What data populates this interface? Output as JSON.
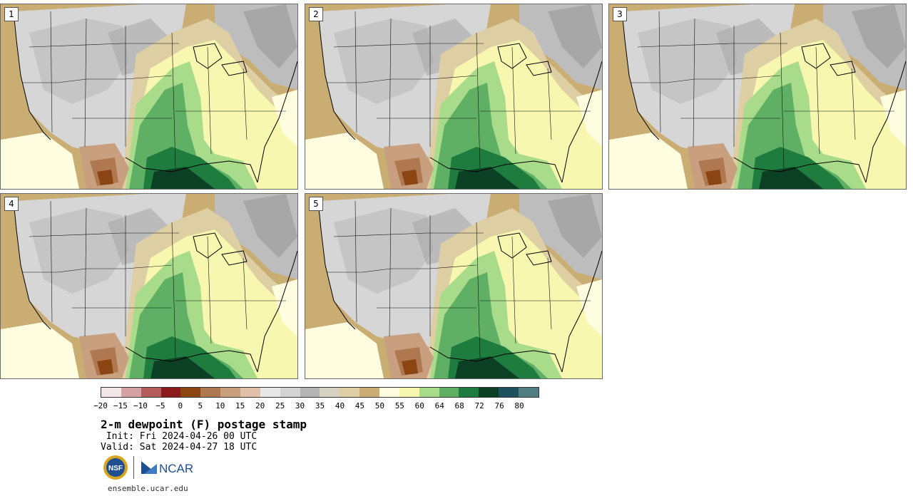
{
  "panels": [
    {
      "label": "1"
    },
    {
      "label": "2"
    },
    {
      "label": "3"
    },
    {
      "label": "4"
    },
    {
      "label": "5"
    }
  ],
  "colorbar": {
    "colors": [
      "#f3e6e6",
      "#d4a2a2",
      "#b45c5c",
      "#8b1a1a",
      "#8b4513",
      "#b07850",
      "#c8a080",
      "#e0c0a8",
      "#e8e8e8",
      "#d4d4d4",
      "#b4b4b4",
      "#d6d2c2",
      "#decea4",
      "#c9ad73",
      "#fffde0",
      "#f7f7b0",
      "#a9dc8a",
      "#5fb064",
      "#1e7d3e",
      "#0b4024",
      "#1f5060",
      "#507e82"
    ],
    "tick_labels": [
      "−20",
      "−15",
      "−10",
      "−5",
      "0",
      "5",
      "10",
      "15",
      "20",
      "25",
      "30",
      "35",
      "40",
      "45",
      "50",
      "55",
      "60",
      "64",
      "68",
      "72",
      "76",
      "80"
    ]
  },
  "title": "2-m dewpoint (F) postage stamp",
  "init": " Init: Fri 2024-04-26 00 UTC",
  "valid": "Valid: Sat 2024-04-27 18 UTC",
  "logos": {
    "nsf": "NSF",
    "ncar": "NCAR"
  },
  "site": "ensemble.ucar.edu"
}
